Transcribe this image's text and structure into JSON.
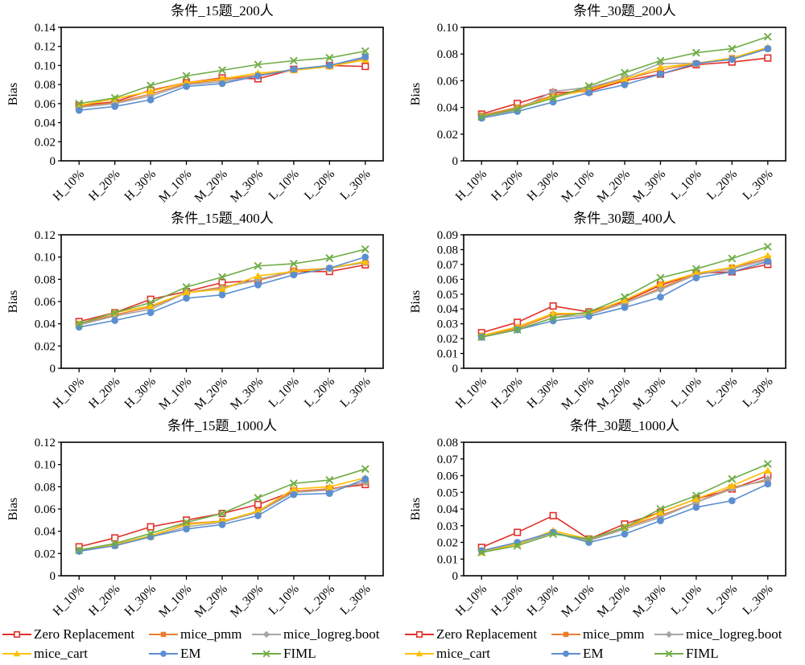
{
  "legend": {
    "items": [
      {
        "label": "Zero Replacement",
        "color": "#e2302a",
        "marker": "open-square"
      },
      {
        "label": "mice_pmm",
        "color": "#ED7D31",
        "marker": "square"
      },
      {
        "label": "mice_logreg.boot",
        "color": "#A5A5A5",
        "marker": "diamond"
      },
      {
        "label": "mice_cart",
        "color": "#FFC000",
        "marker": "triangle"
      },
      {
        "label": "EM",
        "color": "#5B8FD0",
        "marker": "circle"
      },
      {
        "label": "FIML",
        "color": "#70AD47",
        "marker": "x"
      }
    ]
  },
  "chart_data": [
    {
      "type": "line",
      "title": "条件_15题_200人",
      "ylabel": "Bias",
      "ylim": [
        0,
        0.14
      ],
      "ytick_step": 0.02,
      "grid": false,
      "categories": [
        "H_10%",
        "H_20%",
        "H_30%",
        "M_10%",
        "M_20%",
        "M_30%",
        "L_10%",
        "L_20%",
        "L_30%"
      ],
      "series": [
        {
          "name": "Zero Replacement",
          "values": [
            0.058,
            0.062,
            0.074,
            0.082,
            0.087,
            0.086,
            0.096,
            0.1,
            0.099
          ]
        },
        {
          "name": "mice_pmm",
          "values": [
            0.057,
            0.061,
            0.07,
            0.081,
            0.085,
            0.09,
            0.095,
            0.099,
            0.107
          ]
        },
        {
          "name": "mice_logreg.boot",
          "values": [
            0.056,
            0.06,
            0.068,
            0.08,
            0.083,
            0.089,
            0.096,
            0.1,
            0.108
          ]
        },
        {
          "name": "mice_cart",
          "values": [
            0.058,
            0.065,
            0.073,
            0.082,
            0.086,
            0.092,
            0.095,
            0.099,
            0.106
          ]
        },
        {
          "name": "EM",
          "values": [
            0.053,
            0.057,
            0.064,
            0.078,
            0.081,
            0.089,
            0.096,
            0.1,
            0.109
          ]
        },
        {
          "name": "FIML",
          "values": [
            0.06,
            0.066,
            0.079,
            0.089,
            0.095,
            0.101,
            0.105,
            0.108,
            0.115
          ]
        }
      ]
    },
    {
      "type": "line",
      "title": "条件_30题_200人",
      "ylabel": "Bias",
      "ylim": [
        0,
        0.1
      ],
      "ytick_step": 0.02,
      "grid": false,
      "categories": [
        "H_10%",
        "H_20%",
        "H_30%",
        "M_10%",
        "M_20%",
        "M_30%",
        "L_10%",
        "L_20%",
        "L_30%"
      ],
      "series": [
        {
          "name": "Zero Replacement",
          "values": [
            0.035,
            0.043,
            0.051,
            0.052,
            0.06,
            0.065,
            0.072,
            0.074,
            0.077
          ]
        },
        {
          "name": "mice_pmm",
          "values": [
            0.034,
            0.04,
            0.049,
            0.054,
            0.061,
            0.068,
            0.073,
            0.077,
            0.084
          ]
        },
        {
          "name": "mice_logreg.boot",
          "values": [
            0.033,
            0.038,
            0.052,
            0.055,
            0.062,
            0.073,
            0.073,
            0.076,
            0.084
          ]
        },
        {
          "name": "mice_cart",
          "values": [
            0.033,
            0.039,
            0.048,
            0.053,
            0.061,
            0.07,
            0.073,
            0.077,
            0.085
          ]
        },
        {
          "name": "EM",
          "values": [
            0.032,
            0.037,
            0.044,
            0.051,
            0.057,
            0.065,
            0.073,
            0.076,
            0.084
          ]
        },
        {
          "name": "FIML",
          "values": [
            0.033,
            0.039,
            0.047,
            0.056,
            0.066,
            0.075,
            0.081,
            0.084,
            0.093
          ]
        }
      ]
    },
    {
      "type": "line",
      "title": "条件_15题_400人",
      "ylabel": "Bias",
      "ylim": [
        0,
        0.12
      ],
      "ytick_step": 0.02,
      "grid": false,
      "categories": [
        "H_10%",
        "H_20%",
        "H_30%",
        "M_10%",
        "M_20%",
        "M_30%",
        "L_10%",
        "L_20%",
        "L_30%"
      ],
      "series": [
        {
          "name": "Zero Replacement",
          "values": [
            0.042,
            0.05,
            0.062,
            0.069,
            0.077,
            0.079,
            0.087,
            0.087,
            0.093
          ]
        },
        {
          "name": "mice_pmm",
          "values": [
            0.04,
            0.048,
            0.055,
            0.068,
            0.073,
            0.079,
            0.088,
            0.09,
            0.095
          ]
        },
        {
          "name": "mice_logreg.boot",
          "values": [
            0.039,
            0.047,
            0.053,
            0.068,
            0.072,
            0.08,
            0.087,
            0.09,
            0.095
          ]
        },
        {
          "name": "mice_cart",
          "values": [
            0.04,
            0.05,
            0.056,
            0.068,
            0.071,
            0.083,
            0.087,
            0.09,
            0.096
          ]
        },
        {
          "name": "EM",
          "values": [
            0.037,
            0.043,
            0.05,
            0.063,
            0.066,
            0.075,
            0.084,
            0.09,
            0.1
          ]
        },
        {
          "name": "FIML",
          "values": [
            0.04,
            0.05,
            0.059,
            0.073,
            0.082,
            0.092,
            0.094,
            0.099,
            0.107
          ]
        }
      ]
    },
    {
      "type": "line",
      "title": "条件_30题_400人",
      "ylabel": "Bias",
      "ylim": [
        0,
        0.09
      ],
      "ytick_step": 0.01,
      "grid": false,
      "categories": [
        "H_10%",
        "H_20%",
        "H_30%",
        "M_10%",
        "M_20%",
        "M_30%",
        "L_10%",
        "L_20%",
        "L_30%"
      ],
      "series": [
        {
          "name": "Zero Replacement",
          "values": [
            0.024,
            0.031,
            0.042,
            0.038,
            0.045,
            0.056,
            0.064,
            0.065,
            0.07
          ]
        },
        {
          "name": "mice_pmm",
          "values": [
            0.022,
            0.027,
            0.036,
            0.037,
            0.044,
            0.054,
            0.064,
            0.068,
            0.074
          ]
        },
        {
          "name": "mice_logreg.boot",
          "values": [
            0.021,
            0.026,
            0.034,
            0.036,
            0.044,
            0.053,
            0.063,
            0.067,
            0.073
          ]
        },
        {
          "name": "mice_cart",
          "values": [
            0.022,
            0.028,
            0.037,
            0.037,
            0.046,
            0.057,
            0.064,
            0.068,
            0.076
          ]
        },
        {
          "name": "EM",
          "values": [
            0.021,
            0.026,
            0.032,
            0.035,
            0.041,
            0.048,
            0.061,
            0.065,
            0.072
          ]
        },
        {
          "name": "FIML",
          "values": [
            0.021,
            0.026,
            0.034,
            0.038,
            0.048,
            0.061,
            0.067,
            0.074,
            0.082
          ]
        }
      ]
    },
    {
      "type": "line",
      "title": "条件_15题_1000人",
      "ylabel": "Bias",
      "ylim": [
        0,
        0.12
      ],
      "ytick_step": 0.02,
      "grid": false,
      "categories": [
        "H_10%",
        "H_20%",
        "H_30%",
        "M_10%",
        "M_20%",
        "M_30%",
        "L_10%",
        "L_20%",
        "L_30%"
      ],
      "series": [
        {
          "name": "Zero Replacement",
          "values": [
            0.026,
            0.034,
            0.044,
            0.05,
            0.056,
            0.064,
            0.076,
            0.078,
            0.082
          ]
        },
        {
          "name": "mice_pmm",
          "values": [
            0.023,
            0.027,
            0.035,
            0.047,
            0.049,
            0.058,
            0.076,
            0.078,
            0.084
          ]
        },
        {
          "name": "mice_logreg.boot",
          "values": [
            0.022,
            0.028,
            0.035,
            0.044,
            0.048,
            0.057,
            0.075,
            0.077,
            0.084
          ]
        },
        {
          "name": "mice_cart",
          "values": [
            0.023,
            0.028,
            0.036,
            0.046,
            0.049,
            0.058,
            0.078,
            0.08,
            0.088
          ]
        },
        {
          "name": "EM",
          "values": [
            0.022,
            0.027,
            0.035,
            0.042,
            0.046,
            0.054,
            0.073,
            0.074,
            0.087
          ]
        },
        {
          "name": "FIML",
          "values": [
            0.023,
            0.029,
            0.038,
            0.048,
            0.056,
            0.07,
            0.083,
            0.086,
            0.096
          ]
        }
      ]
    },
    {
      "type": "line",
      "title": "条件_30题_1000人",
      "ylabel": "Bias",
      "ylim": [
        0,
        0.08
      ],
      "ytick_step": 0.01,
      "grid": false,
      "categories": [
        "H_10%",
        "H_20%",
        "H_30%",
        "M_10%",
        "M_20%",
        "M_30%",
        "L_10%",
        "L_20%",
        "L_30%"
      ],
      "series": [
        {
          "name": "Zero Replacement",
          "values": [
            0.017,
            0.026,
            0.036,
            0.022,
            0.031,
            0.038,
            0.046,
            0.052,
            0.06
          ]
        },
        {
          "name": "mice_pmm",
          "values": [
            0.015,
            0.019,
            0.026,
            0.021,
            0.029,
            0.036,
            0.044,
            0.053,
            0.057
          ]
        },
        {
          "name": "mice_logreg.boot",
          "values": [
            0.015,
            0.019,
            0.026,
            0.021,
            0.028,
            0.035,
            0.044,
            0.052,
            0.058
          ]
        },
        {
          "name": "mice_cart",
          "values": [
            0.014,
            0.019,
            0.027,
            0.022,
            0.029,
            0.038,
            0.046,
            0.054,
            0.063
          ]
        },
        {
          "name": "EM",
          "values": [
            0.015,
            0.02,
            0.026,
            0.02,
            0.025,
            0.033,
            0.041,
            0.045,
            0.055
          ]
        },
        {
          "name": "FIML",
          "values": [
            0.014,
            0.018,
            0.025,
            0.022,
            0.029,
            0.04,
            0.048,
            0.058,
            0.067
          ]
        }
      ]
    }
  ]
}
